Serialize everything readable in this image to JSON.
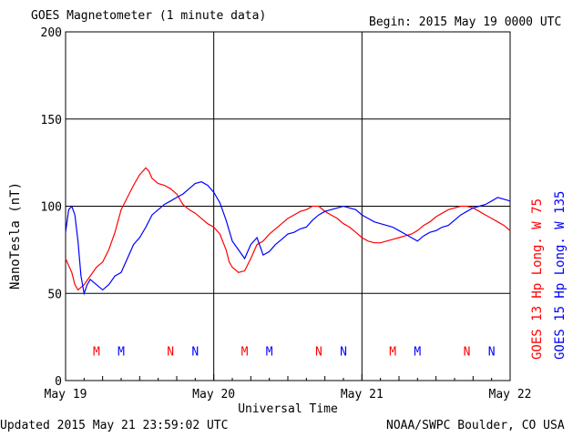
{
  "header": {
    "title": "GOES Magnetometer (1 minute data)",
    "begin": "Begin:  2015 May 19 0000 UTC"
  },
  "footer": {
    "updated": "Updated 2015 May 21 23:59:02 UTC",
    "source": "NOAA/SWPC Boulder, CO USA"
  },
  "chart_data": {
    "type": "line",
    "title": "GOES Magnetometer (1 minute data)",
    "xlabel": "Universal Time",
    "ylabel": "NanoTesla (nT)",
    "xlim_hours": [
      0,
      72
    ],
    "ylim": [
      0,
      200
    ],
    "y_ticks": [
      0,
      50,
      100,
      150,
      200
    ],
    "x_ticks": [
      {
        "hour": 0,
        "label": "May 19"
      },
      {
        "hour": 24,
        "label": "May 20"
      },
      {
        "hour": 48,
        "label": "May 21"
      },
      {
        "hour": 72,
        "label": "May 22"
      }
    ],
    "grid": true,
    "legend_position": "right, vertical",
    "series": [
      {
        "name": "GOES 13 Hp  Long. W 75",
        "color": "#ff0000",
        "points": [
          [
            0,
            70
          ],
          [
            1,
            62
          ],
          [
            1.5,
            55
          ],
          [
            2,
            52
          ],
          [
            3,
            55
          ],
          [
            4,
            60
          ],
          [
            5,
            65
          ],
          [
            6,
            68
          ],
          [
            7,
            75
          ],
          [
            8,
            85
          ],
          [
            9,
            98
          ],
          [
            10,
            105
          ],
          [
            11,
            112
          ],
          [
            12,
            118
          ],
          [
            13,
            122
          ],
          [
            13.5,
            120
          ],
          [
            14,
            116
          ],
          [
            15,
            113
          ],
          [
            16,
            112
          ],
          [
            17,
            110
          ],
          [
            18,
            107
          ],
          [
            19,
            101
          ],
          [
            20,
            98
          ],
          [
            21,
            96
          ],
          [
            22,
            93
          ],
          [
            23,
            90
          ],
          [
            24,
            88
          ],
          [
            25,
            84
          ],
          [
            26,
            75
          ],
          [
            26.5,
            68
          ],
          [
            27,
            65
          ],
          [
            28,
            62
          ],
          [
            29,
            63
          ],
          [
            30,
            70
          ],
          [
            31,
            78
          ],
          [
            32,
            80
          ],
          [
            33,
            84
          ],
          [
            34,
            87
          ],
          [
            35,
            90
          ],
          [
            36,
            93
          ],
          [
            37,
            95
          ],
          [
            38,
            97
          ],
          [
            39,
            98
          ],
          [
            40,
            100
          ],
          [
            41,
            100
          ],
          [
            42,
            97
          ],
          [
            43,
            95
          ],
          [
            44,
            93
          ],
          [
            45,
            90
          ],
          [
            46,
            88
          ],
          [
            47,
            85
          ],
          [
            48,
            82
          ],
          [
            49,
            80
          ],
          [
            50,
            79
          ],
          [
            51,
            79
          ],
          [
            52,
            80
          ],
          [
            53,
            81
          ],
          [
            54,
            82
          ],
          [
            55,
            83
          ],
          [
            56,
            84
          ],
          [
            57,
            86
          ],
          [
            58,
            89
          ],
          [
            59,
            91
          ],
          [
            60,
            94
          ],
          [
            61,
            96
          ],
          [
            62,
            98
          ],
          [
            63,
            99
          ],
          [
            64,
            100
          ],
          [
            65,
            100
          ],
          [
            66,
            99
          ],
          [
            67,
            97
          ],
          [
            68,
            95
          ],
          [
            69,
            93
          ],
          [
            70,
            91
          ],
          [
            71,
            89
          ],
          [
            72,
            86
          ]
        ]
      },
      {
        "name": "GOES 15 Hp  Long. W 135",
        "color": "#0000ff",
        "points": [
          [
            0,
            85
          ],
          [
            0.5,
            98
          ],
          [
            1,
            100
          ],
          [
            1.5,
            95
          ],
          [
            2,
            80
          ],
          [
            2.5,
            60
          ],
          [
            3,
            50
          ],
          [
            3.5,
            55
          ],
          [
            4,
            58
          ],
          [
            5,
            55
          ],
          [
            6,
            52
          ],
          [
            7,
            55
          ],
          [
            8,
            60
          ],
          [
            9,
            62
          ],
          [
            10,
            70
          ],
          [
            11,
            78
          ],
          [
            12,
            82
          ],
          [
            13,
            88
          ],
          [
            14,
            95
          ],
          [
            15,
            98
          ],
          [
            16,
            101
          ],
          [
            17,
            103
          ],
          [
            18,
            105
          ],
          [
            19,
            107
          ],
          [
            20,
            110
          ],
          [
            21,
            113
          ],
          [
            22,
            114
          ],
          [
            23,
            112
          ],
          [
            24,
            108
          ],
          [
            25,
            102
          ],
          [
            26,
            92
          ],
          [
            27,
            80
          ],
          [
            28,
            75
          ],
          [
            29,
            70
          ],
          [
            30,
            78
          ],
          [
            31,
            82
          ],
          [
            32,
            72
          ],
          [
            33,
            74
          ],
          [
            34,
            78
          ],
          [
            35,
            81
          ],
          [
            36,
            84
          ],
          [
            37,
            85
          ],
          [
            38,
            87
          ],
          [
            39,
            88
          ],
          [
            40,
            92
          ],
          [
            41,
            95
          ],
          [
            42,
            97
          ],
          [
            43,
            98
          ],
          [
            44,
            99
          ],
          [
            45,
            100
          ],
          [
            46,
            99
          ],
          [
            47,
            98
          ],
          [
            48,
            95
          ],
          [
            49,
            93
          ],
          [
            50,
            91
          ],
          [
            51,
            90
          ],
          [
            52,
            89
          ],
          [
            53,
            88
          ],
          [
            54,
            86
          ],
          [
            55,
            84
          ],
          [
            56,
            82
          ],
          [
            57,
            80
          ],
          [
            58,
            83
          ],
          [
            59,
            85
          ],
          [
            60,
            86
          ],
          [
            61,
            88
          ],
          [
            62,
            89
          ],
          [
            63,
            92
          ],
          [
            64,
            95
          ],
          [
            65,
            97
          ],
          [
            66,
            99
          ],
          [
            67,
            100
          ],
          [
            68,
            101
          ],
          [
            69,
            103
          ],
          [
            70,
            105
          ],
          [
            71,
            104
          ],
          [
            72,
            103
          ]
        ]
      }
    ],
    "annotations": [
      {
        "text": "M",
        "hour": 5,
        "y": 17,
        "color": "#ff0000"
      },
      {
        "text": "M",
        "hour": 9,
        "y": 17,
        "color": "#0000ff"
      },
      {
        "text": "N",
        "hour": 17,
        "y": 17,
        "color": "#ff0000"
      },
      {
        "text": "N",
        "hour": 21,
        "y": 17,
        "color": "#0000ff"
      },
      {
        "text": "M",
        "hour": 29,
        "y": 17,
        "color": "#ff0000"
      },
      {
        "text": "M",
        "hour": 33,
        "y": 17,
        "color": "#0000ff"
      },
      {
        "text": "N",
        "hour": 41,
        "y": 17,
        "color": "#ff0000"
      },
      {
        "text": "N",
        "hour": 45,
        "y": 17,
        "color": "#0000ff"
      },
      {
        "text": "M",
        "hour": 53,
        "y": 17,
        "color": "#ff0000"
      },
      {
        "text": "M",
        "hour": 57,
        "y": 17,
        "color": "#0000ff"
      },
      {
        "text": "N",
        "hour": 65,
        "y": 17,
        "color": "#ff0000"
      },
      {
        "text": "N",
        "hour": 69,
        "y": 17,
        "color": "#0000ff"
      }
    ]
  }
}
